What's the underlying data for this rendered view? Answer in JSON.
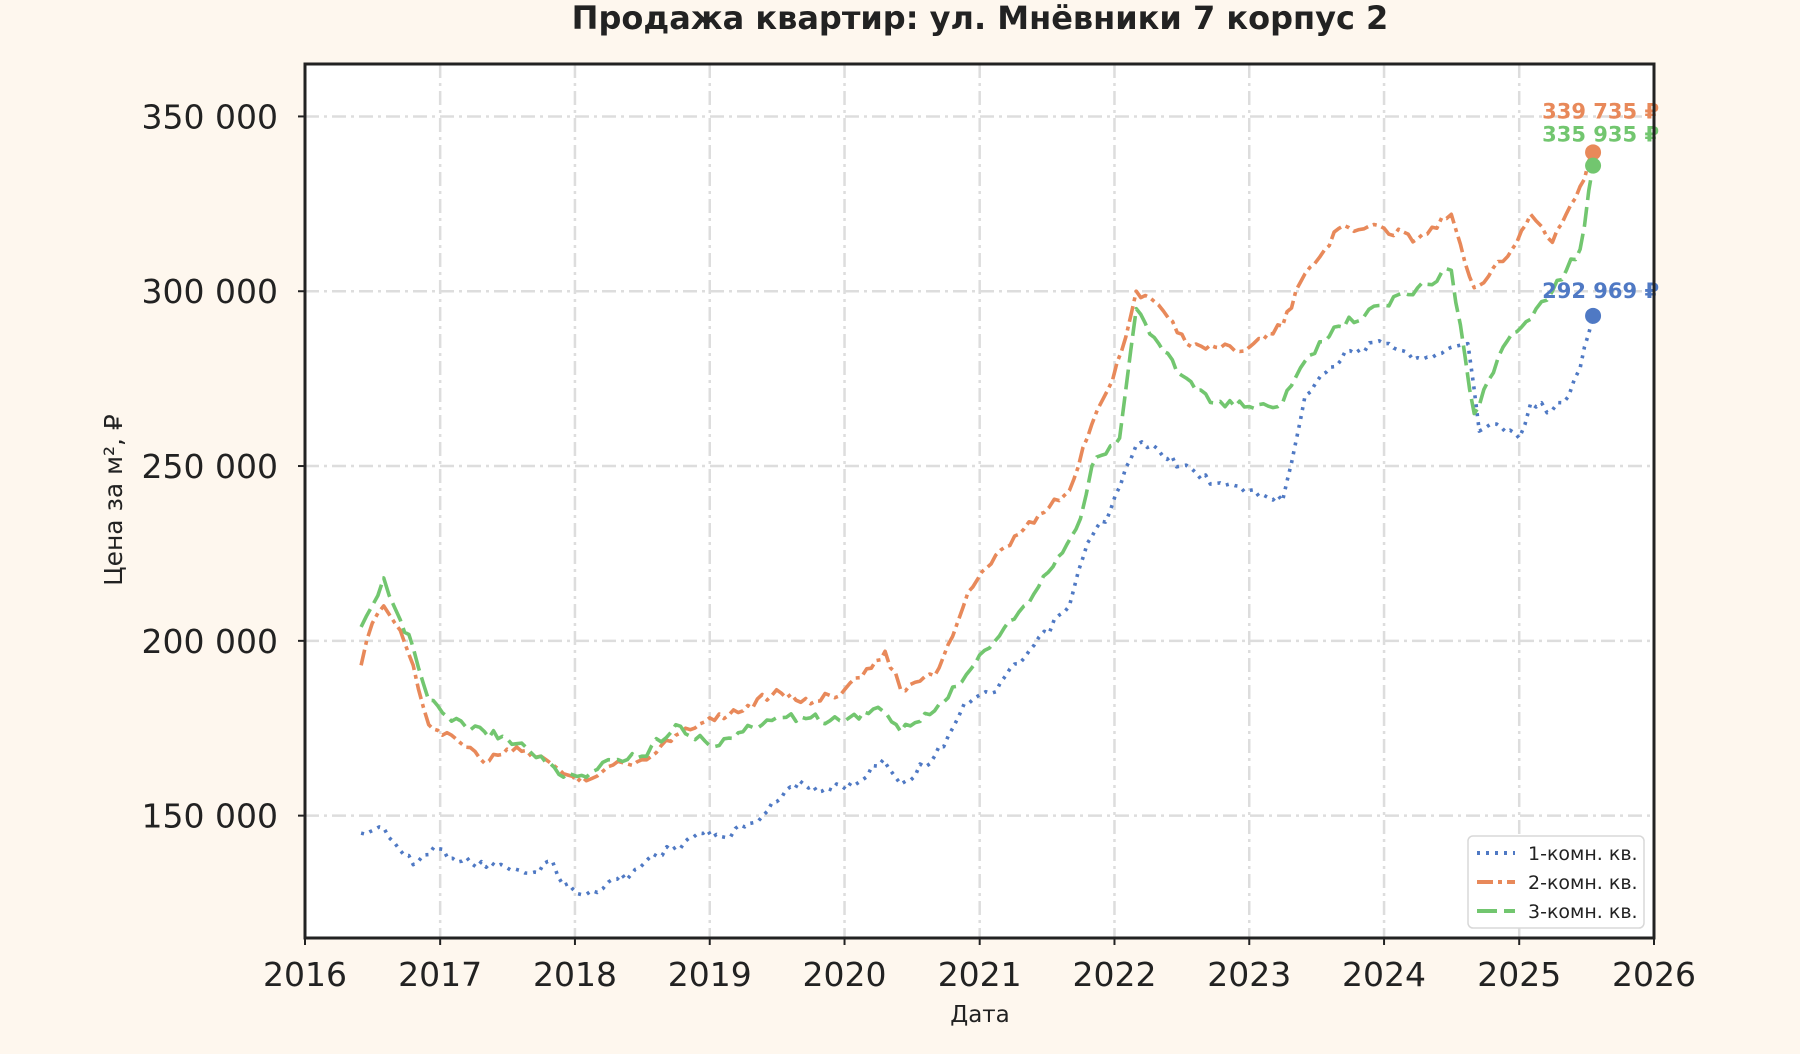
{
  "chart_data": {
    "type": "line",
    "title": "Продажа квартир: ул. Мнёвники 7 корпус 2",
    "xlabel": "Дата",
    "ylabel": "Цена за м², ₽",
    "xlim": [
      "2016-01-01",
      "2026-01-01"
    ],
    "ylim": [
      115000,
      365000
    ],
    "x_ticks": [
      "2016",
      "2017",
      "2018",
      "2019",
      "2020",
      "2021",
      "2022",
      "2023",
      "2024",
      "2025",
      "2026"
    ],
    "y_ticks": [
      150000,
      200000,
      250000,
      300000,
      350000
    ],
    "y_tick_labels": [
      "150 000",
      "200 000",
      "250 000",
      "300 000",
      "350 000"
    ],
    "grid": true,
    "legend_position": "lower-right",
    "series": [
      {
        "name": "1-комн. кв.",
        "color": "#4f79c4",
        "dash": "dotted",
        "points": [
          [
            "2016-06-01",
            145000
          ],
          [
            "2016-08-01",
            146500
          ],
          [
            "2016-09-15",
            140000
          ],
          [
            "2016-10-20",
            136000
          ],
          [
            "2016-12-15",
            141000
          ],
          [
            "2017-03-01",
            137000
          ],
          [
            "2017-06-01",
            135500
          ],
          [
            "2017-09-01",
            133500
          ],
          [
            "2017-11-01",
            137000
          ],
          [
            "2017-12-01",
            130000
          ],
          [
            "2018-02-01",
            127500
          ],
          [
            "2018-04-01",
            131000
          ],
          [
            "2018-06-01",
            133000
          ],
          [
            "2018-08-01",
            139000
          ],
          [
            "2018-10-01",
            141000
          ],
          [
            "2018-12-01",
            145000
          ],
          [
            "2019-02-01",
            144000
          ],
          [
            "2019-05-01",
            148000
          ],
          [
            "2019-07-01",
            154000
          ],
          [
            "2019-09-01",
            160000
          ],
          [
            "2019-11-01",
            157000
          ],
          [
            "2020-02-01",
            159000
          ],
          [
            "2020-04-15",
            166000
          ],
          [
            "2020-06-01",
            159000
          ],
          [
            "2020-09-01",
            167000
          ],
          [
            "2020-10-20",
            175000
          ],
          [
            "2020-11-20",
            182000
          ],
          [
            "2021-02-01",
            185000
          ],
          [
            "2021-05-01",
            195000
          ],
          [
            "2021-09-01",
            210000
          ],
          [
            "2021-10-20",
            228000
          ],
          [
            "2021-12-20",
            237000
          ],
          [
            "2022-03-01",
            256000
          ],
          [
            "2022-04-15",
            256000
          ],
          [
            "2022-07-01",
            250000
          ],
          [
            "2022-10-01",
            245000
          ],
          [
            "2023-01-01",
            243000
          ],
          [
            "2023-04-01",
            240000
          ],
          [
            "2023-06-01",
            270000
          ],
          [
            "2023-07-15",
            276000
          ],
          [
            "2023-10-01",
            283000
          ],
          [
            "2024-01-01",
            285000
          ],
          [
            "2024-04-01",
            281000
          ],
          [
            "2024-07-01",
            284000
          ],
          [
            "2024-08-15",
            285000
          ],
          [
            "2024-09-15",
            260000
          ],
          [
            "2024-11-01",
            262000
          ],
          [
            "2025-01-01",
            258000
          ],
          [
            "2025-02-01",
            268000
          ],
          [
            "2025-04-01",
            266000
          ],
          [
            "2025-05-15",
            270000
          ],
          [
            "2025-06-15",
            278000
          ],
          [
            "2025-07-20",
            292969
          ]
        ]
      },
      {
        "name": "2-комн. кв.",
        "color": "#e8895a",
        "dash": "dashdot",
        "points": [
          [
            "2016-06-01",
            193000
          ],
          [
            "2016-07-01",
            205000
          ],
          [
            "2016-08-01",
            210000
          ],
          [
            "2016-09-15",
            203000
          ],
          [
            "2016-10-20",
            193000
          ],
          [
            "2016-12-01",
            176000
          ],
          [
            "2017-02-01",
            173000
          ],
          [
            "2017-05-01",
            165000
          ],
          [
            "2017-07-01",
            169000
          ],
          [
            "2017-10-01",
            167000
          ],
          [
            "2017-12-01",
            162000
          ],
          [
            "2018-02-01",
            160000
          ],
          [
            "2018-04-01",
            164000
          ],
          [
            "2018-07-01",
            166000
          ],
          [
            "2018-10-01",
            173000
          ],
          [
            "2019-01-01",
            178000
          ],
          [
            "2019-04-01",
            180000
          ],
          [
            "2019-07-01",
            186000
          ],
          [
            "2019-10-01",
            182000
          ],
          [
            "2020-01-01",
            186000
          ],
          [
            "2020-03-01",
            192000
          ],
          [
            "2020-04-20",
            197000
          ],
          [
            "2020-06-01",
            186000
          ],
          [
            "2020-09-01",
            190000
          ],
          [
            "2020-11-01",
            205000
          ],
          [
            "2020-12-01",
            214000
          ],
          [
            "2021-02-01",
            222000
          ],
          [
            "2021-05-01",
            232000
          ],
          [
            "2021-09-01",
            243000
          ],
          [
            "2021-11-01",
            262000
          ],
          [
            "2021-12-15",
            272000
          ],
          [
            "2022-02-01",
            287000
          ],
          [
            "2022-03-01",
            300000
          ],
          [
            "2022-05-01",
            296000
          ],
          [
            "2022-07-15",
            285000
          ],
          [
            "2022-10-01",
            284000
          ],
          [
            "2023-01-01",
            284000
          ],
          [
            "2023-04-01",
            290000
          ],
          [
            "2023-06-01",
            305000
          ],
          [
            "2023-09-01",
            318000
          ],
          [
            "2024-01-01",
            318000
          ],
          [
            "2024-04-01",
            315000
          ],
          [
            "2024-07-01",
            322000
          ],
          [
            "2024-09-01",
            301000
          ],
          [
            "2024-12-01",
            310000
          ],
          [
            "2025-02-01",
            322000
          ],
          [
            "2025-04-01",
            314000
          ],
          [
            "2025-06-15",
            330000
          ],
          [
            "2025-07-20",
            339735
          ]
        ]
      },
      {
        "name": "3-комн. кв.",
        "color": "#72c66f",
        "dash": "dashed",
        "points": [
          [
            "2016-06-01",
            204000
          ],
          [
            "2016-07-01",
            210000
          ],
          [
            "2016-08-01",
            218000
          ],
          [
            "2016-09-15",
            206000
          ],
          [
            "2016-10-20",
            198000
          ],
          [
            "2016-12-01",
            183000
          ],
          [
            "2017-02-01",
            177000
          ],
          [
            "2017-05-01",
            174000
          ],
          [
            "2017-07-01",
            172000
          ],
          [
            "2017-10-01",
            167000
          ],
          [
            "2017-12-01",
            161000
          ],
          [
            "2018-02-01",
            161000
          ],
          [
            "2018-04-01",
            166000
          ],
          [
            "2018-07-01",
            167000
          ],
          [
            "2018-10-01",
            176000
          ],
          [
            "2019-01-01",
            170000
          ],
          [
            "2019-04-01",
            174000
          ],
          [
            "2019-07-01",
            178000
          ],
          [
            "2019-10-01",
            178000
          ],
          [
            "2020-01-01",
            177000
          ],
          [
            "2020-04-01",
            181000
          ],
          [
            "2020-06-01",
            174000
          ],
          [
            "2020-09-01",
            180000
          ],
          [
            "2020-11-01",
            187000
          ],
          [
            "2021-01-01",
            196000
          ],
          [
            "2021-05-01",
            210000
          ],
          [
            "2021-08-01",
            224000
          ],
          [
            "2021-10-01",
            235000
          ],
          [
            "2021-11-01",
            250000
          ],
          [
            "2022-01-15",
            258000
          ],
          [
            "2022-03-01",
            295000
          ],
          [
            "2022-05-01",
            285000
          ],
          [
            "2022-07-01",
            276000
          ],
          [
            "2022-10-01",
            268000
          ],
          [
            "2023-01-01",
            267000
          ],
          [
            "2023-04-01",
            268000
          ],
          [
            "2023-06-01",
            280000
          ],
          [
            "2023-09-01",
            290000
          ],
          [
            "2024-01-01",
            296000
          ],
          [
            "2024-04-01",
            301000
          ],
          [
            "2024-07-01",
            306000
          ],
          [
            "2024-09-01",
            265000
          ],
          [
            "2024-12-01",
            286000
          ],
          [
            "2025-02-01",
            292000
          ],
          [
            "2025-04-01",
            300000
          ],
          [
            "2025-06-15",
            312000
          ],
          [
            "2025-07-20",
            335935
          ]
        ]
      }
    ],
    "last_value_labels": [
      {
        "series": "1-комн. кв.",
        "date": "2025-07-20",
        "value": 292969,
        "text": "292 969 ₽"
      },
      {
        "series": "2-комн. кв.",
        "date": "2025-07-20",
        "value": 339735,
        "text": "339 735 ₽"
      },
      {
        "series": "3-комн. кв.",
        "date": "2025-07-20",
        "value": 335935,
        "text": "335 935 ₽"
      }
    ]
  }
}
